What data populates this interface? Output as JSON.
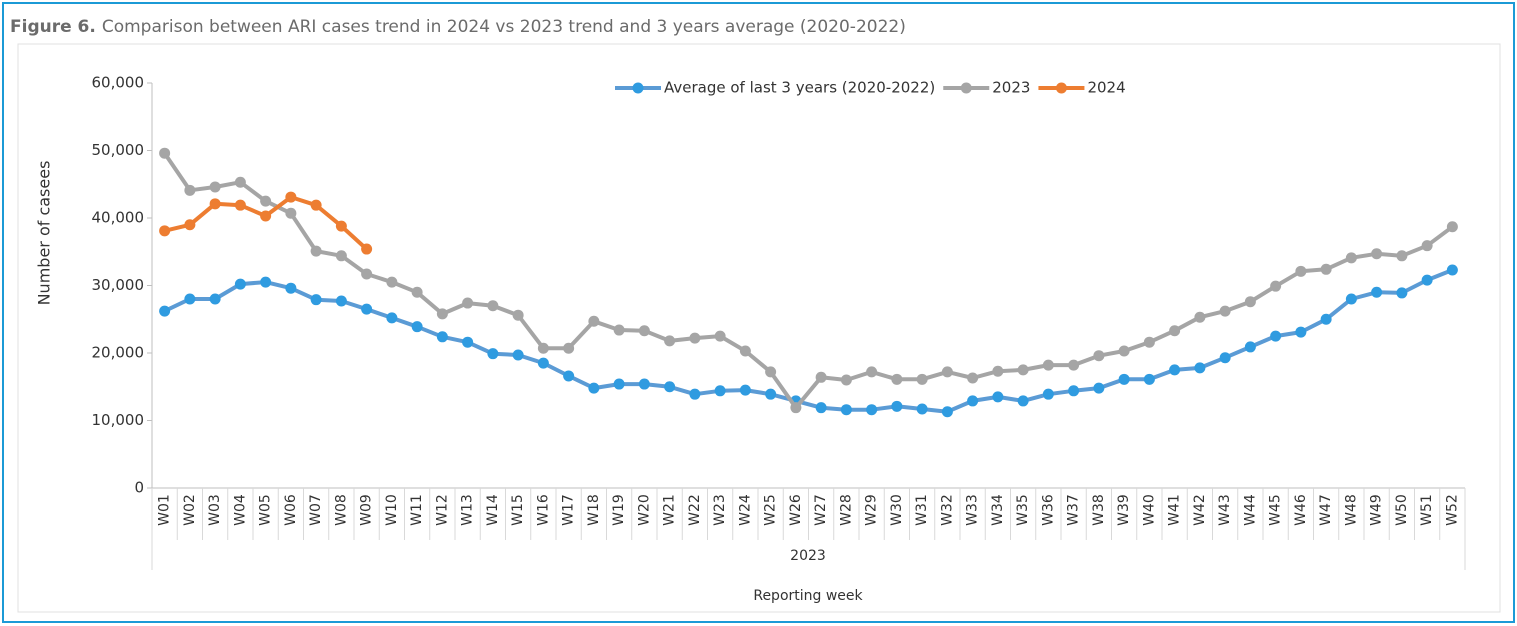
{
  "chart_data": {
    "type": "line",
    "title_label": "Figure 6.",
    "title": "Comparison between ARI cases trend in 2024 vs 2023 trend and 3 years average (2020-2022)",
    "y_label": "Number of casees",
    "x_label": "Reporting week",
    "category_group": "2023",
    "categories": [
      "W01",
      "W02",
      "W03",
      "W04",
      "W05",
      "W06",
      "W07",
      "W08",
      "W09",
      "W10",
      "W11",
      "W12",
      "W13",
      "W14",
      "W15",
      "W16",
      "W17",
      "W18",
      "W19",
      "W20",
      "W21",
      "W22",
      "W23",
      "W24",
      "W25",
      "W26",
      "W27",
      "W28",
      "W29",
      "W30",
      "W31",
      "W32",
      "W33",
      "W34",
      "W35",
      "W36",
      "W37",
      "W38",
      "W39",
      "W40",
      "W41",
      "W42",
      "W43",
      "W44",
      "W45",
      "W46",
      "W47",
      "W48",
      "W49",
      "W50",
      "W51",
      "W52"
    ],
    "series": [
      {
        "name": "Average of last 3 years (2020-2022)",
        "color": "#2f9be0",
        "line_color": "#5b9bd5",
        "values": [
          26200,
          28000,
          28000,
          30200,
          30500,
          29600,
          27900,
          27700,
          26500,
          25200,
          23900,
          22400,
          21600,
          19900,
          19700,
          18500,
          16600,
          14800,
          15400,
          15400,
          15000,
          13900,
          14400,
          14500,
          13900,
          12900,
          11900,
          11600,
          11600,
          12100,
          11700,
          11300,
          12900,
          13500,
          12900,
          13900,
          14400,
          14800,
          16100,
          16100,
          17500,
          17800,
          19300,
          20900,
          22500,
          23100,
          25000,
          28000,
          29000,
          28900,
          30800,
          32300
        ]
      },
      {
        "name": "2023",
        "color": "#a5a5a5",
        "line_color": "#a5a5a5",
        "values": [
          49600,
          44100,
          44600,
          45300,
          42500,
          40700,
          35100,
          34400,
          31700,
          30500,
          29000,
          25800,
          27400,
          27000,
          25600,
          20700,
          20700,
          24700,
          23400,
          23300,
          21800,
          22200,
          22500,
          20300,
          17200,
          11900,
          16400,
          16000,
          17200,
          16100,
          16100,
          17200,
          16300,
          17300,
          17500,
          18200,
          18200,
          19600,
          20300,
          21600,
          23300,
          25300,
          26200,
          27600,
          29900,
          32100,
          32400,
          34100,
          34700,
          34400,
          35900,
          38700
        ]
      },
      {
        "name": "2024",
        "color": "#ed7d31",
        "line_color": "#ed7d31",
        "values": [
          38100,
          39000,
          42100,
          41900,
          40300,
          43100,
          41900,
          38800,
          35400,
          null,
          null,
          null,
          null,
          null,
          null,
          null,
          null,
          null,
          null,
          null,
          null,
          null,
          null,
          null,
          null,
          null,
          null,
          null,
          null,
          null,
          null,
          null,
          null,
          null,
          null,
          null,
          null,
          null,
          null,
          null,
          null,
          null,
          null,
          null,
          null,
          null,
          null,
          null,
          null,
          null,
          null,
          null
        ]
      }
    ],
    "ylim": [
      0,
      60000
    ],
    "yticks": [
      0,
      {
        "value": 10000,
        "label": "10,000"
      },
      {
        "value": 20000,
        "label": "20,000"
      },
      {
        "value": 30000,
        "label": "30,000"
      },
      {
        "value": 40000,
        "label": "40,000"
      },
      {
        "value": 50000,
        "label": "50,000"
      },
      {
        "value": 60000,
        "label": "60,000"
      }
    ],
    "legend": "top"
  }
}
